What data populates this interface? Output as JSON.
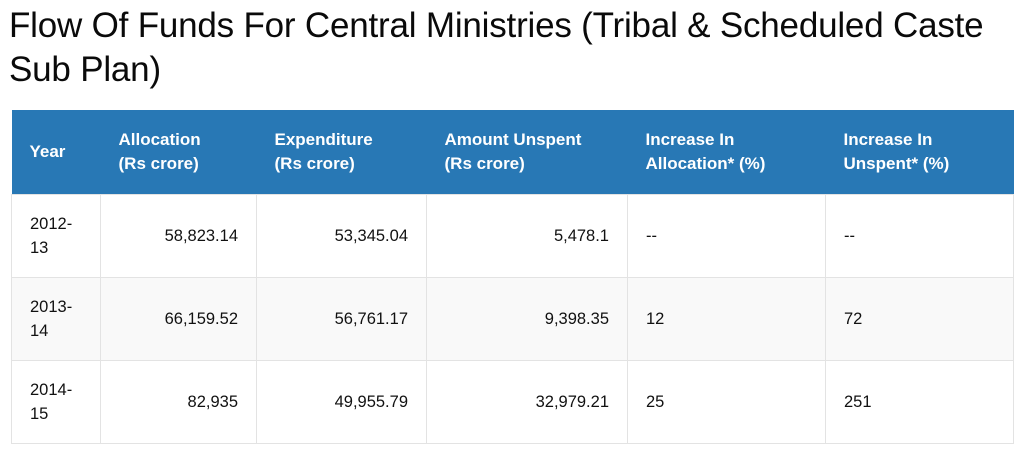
{
  "page": {
    "title": "Flow Of Funds For Central Ministries (Tribal & Scheduled Caste Sub Plan)"
  },
  "colors": {
    "header_bg": "#2878b5",
    "header_text": "#ffffff",
    "row_alt_bg": "#f9f9f9",
    "border": "#e3e3e3"
  },
  "table": {
    "headers": {
      "year": "Year",
      "allocation_l1": "Allocation",
      "allocation_l2": "(Rs crore)",
      "expenditure_l1": "Expenditure",
      "expenditure_l2": "(Rs crore)",
      "unspent_l1": "Amount Unspent",
      "unspent_l2": "(Rs crore)",
      "inc_alloc_l1": "Increase In",
      "inc_alloc_l2": "Allocation* (%)",
      "inc_unspent_l1": "Increase In",
      "inc_unspent_l2": "Unspent* (%)"
    },
    "rows": [
      {
        "year_l1": "2012-",
        "year_l2": "13",
        "allocation": "58,823.14",
        "expenditure": "53,345.04",
        "unspent": "5,478.1",
        "increase_allocation": "--",
        "increase_unspent": "--"
      },
      {
        "year_l1": "2013-",
        "year_l2": "14",
        "allocation": "66,159.52",
        "expenditure": "56,761.17",
        "unspent": "9,398.35",
        "increase_allocation": "12",
        "increase_unspent": "72"
      },
      {
        "year_l1": "2014-",
        "year_l2": "15",
        "allocation": "82,935",
        "expenditure": "49,955.79",
        "unspent": "32,979.21",
        "increase_allocation": "25",
        "increase_unspent": "251"
      }
    ]
  }
}
